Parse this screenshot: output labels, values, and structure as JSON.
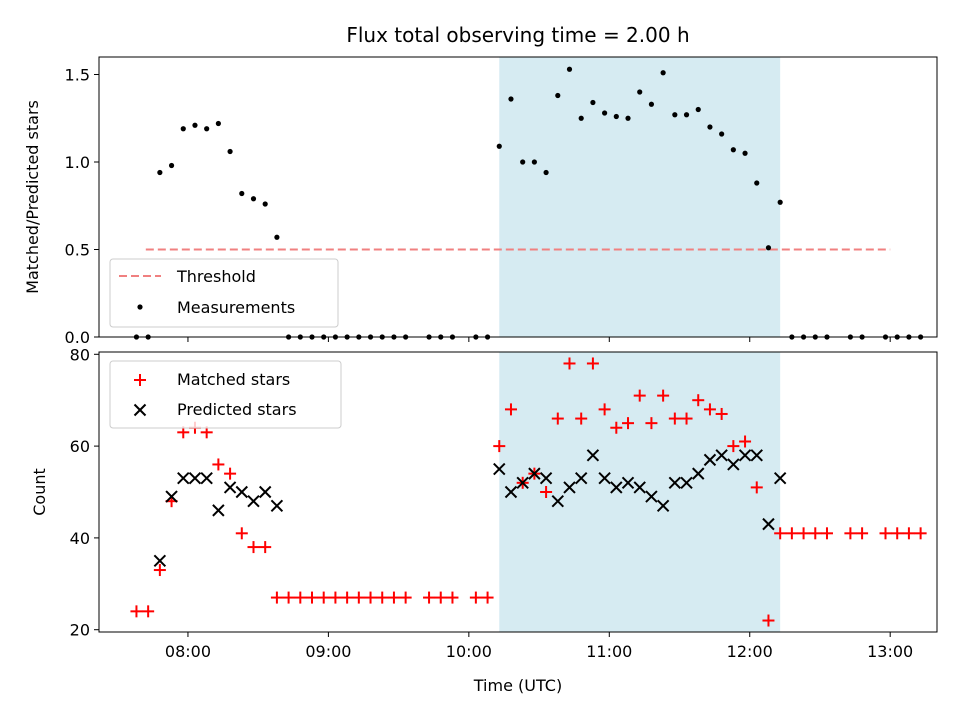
{
  "chart_data": [
    {
      "type": "scatter",
      "title": "Flux total observing time = 2.00 h",
      "xlabel": "",
      "ylabel": "Matched/Predicted stars",
      "xlim": [
        "07:22",
        "13:20"
      ],
      "ylim": [
        0,
        1.6
      ],
      "yticks": [
        0.0,
        0.5,
        1.0,
        1.5
      ],
      "ytick_labels": [
        "0.0",
        "0.5",
        "1.0",
        "1.5"
      ],
      "grid": false,
      "legend_position": "lower-left",
      "highlight_span": {
        "x": [
          "10:13",
          "12:13"
        ],
        "color": "#add8e6"
      },
      "threshold": {
        "name": "Threshold",
        "value": 0.5,
        "x": [
          "07:42",
          "13:00"
        ],
        "color": "#f08080",
        "style": "dashed"
      },
      "series": [
        {
          "name": "Measurements",
          "color": "#000000",
          "marker": "dot",
          "points": [
            [
              "07:38",
              0.0
            ],
            [
              "07:43",
              0.0
            ],
            [
              "07:48",
              0.94
            ],
            [
              "07:53",
              0.98
            ],
            [
              "07:58",
              1.19
            ],
            [
              "08:03",
              1.21
            ],
            [
              "08:08",
              1.19
            ],
            [
              "08:13",
              1.22
            ],
            [
              "08:18",
              1.06
            ],
            [
              "08:23",
              0.82
            ],
            [
              "08:28",
              0.79
            ],
            [
              "08:33",
              0.76
            ],
            [
              "08:38",
              0.57
            ],
            [
              "08:43",
              0.0
            ],
            [
              "08:48",
              0.0
            ],
            [
              "08:53",
              0.0
            ],
            [
              "08:58",
              0.0
            ],
            [
              "09:03",
              0.0
            ],
            [
              "09:08",
              0.0
            ],
            [
              "09:13",
              0.0
            ],
            [
              "09:18",
              0.0
            ],
            [
              "09:23",
              0.0
            ],
            [
              "09:28",
              0.0
            ],
            [
              "09:33",
              0.0
            ],
            [
              "09:43",
              0.0
            ],
            [
              "09:48",
              0.0
            ],
            [
              "09:53",
              0.0
            ],
            [
              "10:03",
              0.0
            ],
            [
              "10:08",
              0.0
            ],
            [
              "10:13",
              1.09
            ],
            [
              "10:18",
              1.36
            ],
            [
              "10:23",
              1.0
            ],
            [
              "10:28",
              1.0
            ],
            [
              "10:33",
              0.94
            ],
            [
              "10:38",
              1.38
            ],
            [
              "10:43",
              1.53
            ],
            [
              "10:48",
              1.25
            ],
            [
              "10:53",
              1.34
            ],
            [
              "10:58",
              1.28
            ],
            [
              "11:03",
              1.26
            ],
            [
              "11:08",
              1.25
            ],
            [
              "11:13",
              1.4
            ],
            [
              "11:18",
              1.33
            ],
            [
              "11:23",
              1.51
            ],
            [
              "11:28",
              1.27
            ],
            [
              "11:33",
              1.27
            ],
            [
              "11:38",
              1.3
            ],
            [
              "11:43",
              1.2
            ],
            [
              "11:48",
              1.16
            ],
            [
              "11:53",
              1.07
            ],
            [
              "11:58",
              1.05
            ],
            [
              "12:03",
              0.88
            ],
            [
              "12:08",
              0.51
            ],
            [
              "12:13",
              0.77
            ],
            [
              "12:18",
              0.0
            ],
            [
              "12:23",
              0.0
            ],
            [
              "12:28",
              0.0
            ],
            [
              "12:33",
              0.0
            ],
            [
              "12:43",
              0.0
            ],
            [
              "12:48",
              0.0
            ],
            [
              "12:58",
              0.0
            ],
            [
              "13:03",
              0.0
            ],
            [
              "13:08",
              0.0
            ],
            [
              "13:13",
              0.0
            ]
          ]
        }
      ]
    },
    {
      "type": "scatter",
      "title": "",
      "xlabel": "Time (UTC)",
      "ylabel": "Count",
      "xlim": [
        "07:22",
        "13:20"
      ],
      "ylim": [
        19.5,
        80.5
      ],
      "yticks": [
        20,
        40,
        60,
        80
      ],
      "ytick_labels": [
        "20",
        "40",
        "60",
        "80"
      ],
      "xticks": [
        "08:00",
        "09:00",
        "10:00",
        "11:00",
        "12:00",
        "13:00"
      ],
      "xtick_labels": [
        "08:00",
        "09:00",
        "10:00",
        "11:00",
        "12:00",
        "13:00"
      ],
      "grid": false,
      "legend_position": "upper-left",
      "highlight_span": {
        "x": [
          "10:13",
          "12:13"
        ],
        "color": "#add8e6"
      },
      "series": [
        {
          "name": "Matched stars",
          "color": "#ff0000",
          "marker": "plus",
          "points": [
            [
              "07:38",
              24
            ],
            [
              "07:43",
              24
            ],
            [
              "07:48",
              33
            ],
            [
              "07:53",
              48
            ],
            [
              "07:58",
              63
            ],
            [
              "08:03",
              64
            ],
            [
              "08:08",
              63
            ],
            [
              "08:13",
              56
            ],
            [
              "08:18",
              54
            ],
            [
              "08:23",
              41
            ],
            [
              "08:28",
              38
            ],
            [
              "08:33",
              38
            ],
            [
              "08:38",
              27
            ],
            [
              "08:43",
              27
            ],
            [
              "08:48",
              27
            ],
            [
              "08:53",
              27
            ],
            [
              "08:58",
              27
            ],
            [
              "09:03",
              27
            ],
            [
              "09:08",
              27
            ],
            [
              "09:13",
              27
            ],
            [
              "09:18",
              27
            ],
            [
              "09:23",
              27
            ],
            [
              "09:28",
              27
            ],
            [
              "09:33",
              27
            ],
            [
              "09:43",
              27
            ],
            [
              "09:48",
              27
            ],
            [
              "09:53",
              27
            ],
            [
              "10:03",
              27
            ],
            [
              "10:08",
              27
            ],
            [
              "10:13",
              60
            ],
            [
              "10:18",
              68
            ],
            [
              "10:23",
              52
            ],
            [
              "10:28",
              54
            ],
            [
              "10:33",
              50
            ],
            [
              "10:38",
              66
            ],
            [
              "10:43",
              78
            ],
            [
              "10:48",
              66
            ],
            [
              "10:53",
              78
            ],
            [
              "10:58",
              68
            ],
            [
              "11:03",
              64
            ],
            [
              "11:08",
              65
            ],
            [
              "11:13",
              71
            ],
            [
              "11:18",
              65
            ],
            [
              "11:23",
              71
            ],
            [
              "11:28",
              66
            ],
            [
              "11:33",
              66
            ],
            [
              "11:38",
              70
            ],
            [
              "11:43",
              68
            ],
            [
              "11:48",
              67
            ],
            [
              "11:53",
              60
            ],
            [
              "11:58",
              61
            ],
            [
              "12:03",
              51
            ],
            [
              "12:08",
              22
            ],
            [
              "12:13",
              41
            ],
            [
              "12:18",
              41
            ],
            [
              "12:23",
              41
            ],
            [
              "12:28",
              41
            ],
            [
              "12:33",
              41
            ],
            [
              "12:43",
              41
            ],
            [
              "12:48",
              41
            ],
            [
              "12:58",
              41
            ],
            [
              "13:03",
              41
            ],
            [
              "13:08",
              41
            ],
            [
              "13:13",
              41
            ]
          ]
        },
        {
          "name": "Predicted stars",
          "color": "#000000",
          "marker": "x",
          "points": [
            [
              "07:48",
              35
            ],
            [
              "07:53",
              49
            ],
            [
              "07:58",
              53
            ],
            [
              "08:03",
              53
            ],
            [
              "08:08",
              53
            ],
            [
              "08:13",
              46
            ],
            [
              "08:18",
              51
            ],
            [
              "08:23",
              50
            ],
            [
              "08:28",
              48
            ],
            [
              "08:33",
              50
            ],
            [
              "08:38",
              47
            ],
            [
              "10:13",
              55
            ],
            [
              "10:18",
              50
            ],
            [
              "10:23",
              52
            ],
            [
              "10:28",
              54
            ],
            [
              "10:33",
              53
            ],
            [
              "10:38",
              48
            ],
            [
              "10:43",
              51
            ],
            [
              "10:48",
              53
            ],
            [
              "10:53",
              58
            ],
            [
              "10:58",
              53
            ],
            [
              "11:03",
              51
            ],
            [
              "11:08",
              52
            ],
            [
              "11:13",
              51
            ],
            [
              "11:18",
              49
            ],
            [
              "11:23",
              47
            ],
            [
              "11:28",
              52
            ],
            [
              "11:33",
              52
            ],
            [
              "11:38",
              54
            ],
            [
              "11:43",
              57
            ],
            [
              "11:48",
              58
            ],
            [
              "11:53",
              56
            ],
            [
              "11:58",
              58
            ],
            [
              "12:03",
              58
            ],
            [
              "12:08",
              43
            ],
            [
              "12:13",
              53
            ]
          ]
        }
      ]
    }
  ]
}
